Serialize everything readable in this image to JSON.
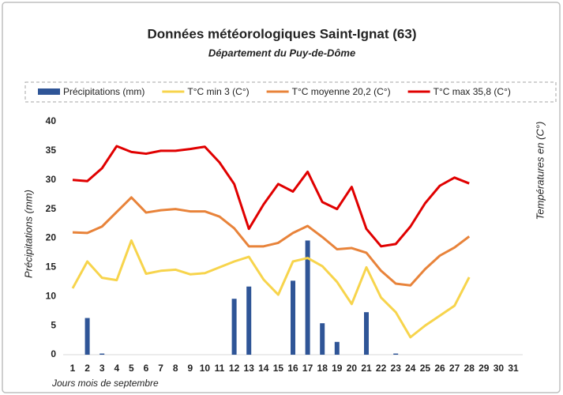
{
  "chart_data": {
    "type": "bar-line",
    "title": "Données météorologiques Saint-Ignat (63)",
    "subtitle": "Département du Puy-de-Dôme",
    "y_label": "Précipitations (mm)",
    "y2_label": "Températures en (C°)",
    "x_label": "Jours mois de septembre",
    "categories": [
      "1",
      "2",
      "3",
      "4",
      "5",
      "6",
      "7",
      "8",
      "9",
      "10",
      "11",
      "12",
      "13",
      "14",
      "15",
      "16",
      "17",
      "18",
      "19",
      "20",
      "21",
      "22",
      "23",
      "24",
      "25",
      "26",
      "27",
      "28",
      "29",
      "30",
      "31"
    ],
    "ylim": [
      0,
      40
    ],
    "yticks": [
      0,
      5,
      10,
      15,
      20,
      25,
      30,
      35,
      40
    ],
    "series": [
      {
        "name": "Précipitations (mm)",
        "kind": "bar",
        "color": "#2f5597",
        "values": [
          0,
          6.3,
          0.2,
          0,
          0,
          0,
          0,
          0,
          0,
          0,
          0,
          9.6,
          11.7,
          0,
          0,
          12.7,
          19.6,
          5.4,
          2.2,
          0,
          7.3,
          0,
          0.2,
          0,
          0,
          0,
          0,
          0,
          null,
          null,
          null
        ]
      },
      {
        "name": "T°C min 3 (C°)",
        "kind": "line",
        "color": "#f7d44c",
        "values": [
          11.4,
          16,
          13.2,
          12.8,
          19.6,
          13.9,
          14.4,
          14.6,
          13.8,
          14,
          15,
          16,
          16.8,
          12.9,
          10.3,
          16,
          16.6,
          15.2,
          12.5,
          8.7,
          15,
          9.8,
          7.3,
          3,
          5,
          6.7,
          8.4,
          13.3,
          null,
          null,
          null
        ]
      },
      {
        "name": "T°C moyenne 20,2 (C°)",
        "kind": "line",
        "color": "#e8833a",
        "values": [
          21,
          20.9,
          22,
          24.5,
          27,
          24.4,
          24.8,
          25,
          24.6,
          24.6,
          23.7,
          21.7,
          18.6,
          18.6,
          19.2,
          20.9,
          22.1,
          20.2,
          18.1,
          18.3,
          17.5,
          14.4,
          12.2,
          11.9,
          14.7,
          17,
          18.4,
          20.3,
          null,
          null,
          null
        ]
      },
      {
        "name": "T°C max 35,8 (C°)",
        "kind": "line",
        "color": "#e00000",
        "values": [
          30,
          29.8,
          32,
          35.8,
          34.8,
          34.5,
          35,
          35,
          35.3,
          35.7,
          33,
          29.3,
          21.6,
          25.8,
          29.3,
          28,
          31.4,
          26.2,
          25,
          28.8,
          21.6,
          18.6,
          19,
          22,
          26,
          29,
          30.4,
          29.4,
          null,
          null,
          null
        ]
      }
    ]
  }
}
